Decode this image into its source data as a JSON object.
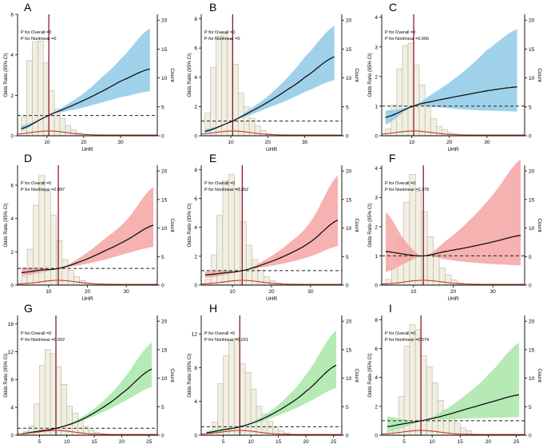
{
  "chart_data": [
    {
      "letter": "A",
      "type": "line",
      "p_overall": "P for Overall =0",
      "p_nonlinear": "P for Nonlinear =0",
      "xlabel": "UHR",
      "ylabel": "Odds Ratio (95% CI)",
      "y2label": "Count",
      "xlim": [
        2,
        40
      ],
      "xticks": [
        10,
        20,
        30
      ],
      "ylim": [
        0,
        6
      ],
      "yticks": [
        0,
        2,
        4,
        6
      ],
      "y2lim": [
        0,
        21
      ],
      "y2ticks": [
        0,
        5,
        10,
        15,
        20
      ],
      "ref_x": 10.5,
      "ref_y": 1,
      "hist_start": 3,
      "hist_width": 1.5,
      "counts": [
        3.3,
        13,
        16.2,
        16.4,
        12.6,
        7.8,
        4.6,
        3.0,
        1.8,
        1.0,
        0.5,
        0.3,
        0.2,
        0.1
      ],
      "curve": {
        "x": [
          3,
          10.5,
          15,
          20,
          25,
          30,
          38
        ],
        "y": [
          0.35,
          1,
          1.35,
          1.75,
          2.2,
          2.7,
          3.3
        ]
      },
      "band": {
        "lower": [
          0.25,
          1,
          1.2,
          1.4,
          1.65,
          1.9,
          2.2
        ],
        "upper": [
          0.5,
          1,
          1.5,
          2.1,
          2.9,
          3.8,
          5.3
        ]
      },
      "band_color": "#8ecae6"
    },
    {
      "letter": "B",
      "type": "line",
      "p_overall": "P for Overall =0",
      "p_nonlinear": "P for Nonlinear =0",
      "xlabel": "UHR",
      "ylabel": "Odds Ratio (95% CI)",
      "y2label": "Count",
      "xlim": [
        2,
        40
      ],
      "xticks": [
        10,
        20,
        30
      ],
      "ylim": [
        0,
        8.3
      ],
      "yticks": [
        0,
        2,
        4,
        6,
        8
      ],
      "y2lim": [
        0,
        21
      ],
      "y2ticks": [
        0,
        5,
        10,
        15,
        20
      ],
      "ref_x": 10.5,
      "ref_y": 1,
      "hist_start": 3,
      "hist_width": 1.5,
      "counts": [
        3.9,
        11.8,
        17.2,
        17.8,
        16.8,
        12.4,
        7.4,
        5.0,
        3.0,
        1.7,
        0.9,
        0.4,
        0.2,
        0.1
      ],
      "curve": {
        "x": [
          3,
          10.5,
          15,
          20,
          25,
          30,
          38
        ],
        "y": [
          0.3,
          1,
          1.6,
          2.3,
          3.1,
          4.0,
          5.4
        ]
      },
      "band": {
        "lower": [
          0.2,
          1,
          1.4,
          1.9,
          2.4,
          3.0,
          3.8
        ],
        "upper": [
          0.45,
          1,
          1.8,
          2.7,
          3.9,
          5.4,
          7.5
        ]
      },
      "band_color": "#8ecae6"
    },
    {
      "letter": "C",
      "type": "line",
      "p_overall": "P for Overall =0",
      "p_nonlinear": "P for Nonlinear =0.006",
      "xlabel": "UHR",
      "ylabel": "Odds Ratio (95% CI)",
      "y2label": "Count",
      "xlim": [
        2,
        40
      ],
      "xticks": [
        10,
        20,
        30
      ],
      "ylim": [
        0,
        4.1
      ],
      "yticks": [
        0,
        1,
        2,
        3,
        4
      ],
      "y2lim": [
        0,
        21
      ],
      "y2ticks": [
        0,
        5,
        10,
        15,
        20
      ],
      "ref_x": 10.5,
      "ref_y": 1,
      "hist_start": 3,
      "hist_width": 1.5,
      "counts": [
        1.2,
        5.3,
        11.6,
        15.6,
        16.0,
        12.2,
        8.8,
        5.3,
        3.0,
        1.6,
        1.0,
        0.5,
        0.3,
        0.15
      ],
      "curve": {
        "x": [
          3,
          10.5,
          15,
          20,
          25,
          30,
          38
        ],
        "y": [
          0.62,
          1,
          1.15,
          1.28,
          1.4,
          1.52,
          1.65
        ]
      },
      "band": {
        "lower": [
          0.38,
          1,
          0.98,
          0.93,
          0.88,
          0.85,
          0.82
        ],
        "upper": [
          0.85,
          1,
          1.38,
          1.8,
          2.3,
          2.9,
          3.6
        ]
      },
      "band_color": "#8ecae6"
    },
    {
      "letter": "D",
      "type": "line",
      "p_overall": "P for Overall =0",
      "p_nonlinear": "P for Nonlinear =0.097",
      "xlabel": "UHR",
      "ylabel": "Odds Ratio (95% CI)",
      "y2label": "Count",
      "xlim": [
        2,
        38
      ],
      "xticks": [
        10,
        20,
        30
      ],
      "ylim": [
        0,
        7.2
      ],
      "yticks": [
        0,
        2,
        4,
        6
      ],
      "y2lim": [
        0,
        21
      ],
      "y2ticks": [
        0,
        5,
        10,
        15,
        20
      ],
      "ref_x": 12.5,
      "ref_y": 1,
      "hist_start": 3,
      "hist_width": 1.5,
      "counts": [
        1.5,
        6.3,
        14.0,
        19.2,
        16.5,
        12.3,
        7.8,
        4.5,
        2.6,
        1.5,
        0.8,
        0.4,
        0.2,
        0.1
      ],
      "curve": {
        "x": [
          3,
          8,
          12.5,
          18,
          24,
          30,
          37
        ],
        "y": [
          0.75,
          0.9,
          1,
          1.4,
          2.0,
          2.7,
          3.6
        ]
      },
      "band": {
        "lower": [
          0.55,
          0.75,
          1,
          1.2,
          1.5,
          1.9,
          2.3
        ],
        "upper": [
          1.05,
          1.05,
          1,
          1.65,
          2.7,
          3.9,
          5.9
        ]
      },
      "band_color": "#f4a3a3"
    },
    {
      "letter": "E",
      "type": "line",
      "p_overall": "P for Overall =0",
      "p_nonlinear": "P for Nonlinear =0.352",
      "xlabel": "UHR",
      "ylabel": "Odds Ratio (95% CI)",
      "y2label": "Count",
      "xlim": [
        2,
        38
      ],
      "xticks": [
        10,
        20,
        30
      ],
      "ylim": [
        0,
        8.3
      ],
      "yticks": [
        0,
        2,
        4,
        6,
        8
      ],
      "y2lim": [
        0,
        21
      ],
      "y2ticks": [
        0,
        5,
        10,
        15,
        20
      ],
      "ref_x": 12.5,
      "ref_y": 1,
      "hist_start": 3,
      "hist_width": 1.5,
      "counts": [
        1.0,
        5.3,
        12.2,
        18.3,
        19.4,
        17.0,
        11.1,
        7.0,
        4.5,
        2.6,
        1.5,
        0.8,
        0.4,
        0.2
      ],
      "curve": {
        "x": [
          3,
          8,
          12.5,
          18,
          24,
          30,
          37
        ],
        "y": [
          0.7,
          0.85,
          1,
          1.45,
          2.1,
          3.0,
          4.5
        ]
      },
      "band": {
        "lower": [
          0.5,
          0.7,
          1,
          1.25,
          1.55,
          2.0,
          2.7
        ],
        "upper": [
          0.95,
          1.0,
          1,
          1.7,
          2.8,
          4.4,
          7.6
        ]
      },
      "band_color": "#f4a3a3"
    },
    {
      "letter": "F",
      "type": "line",
      "p_overall": "P for Overall =0",
      "p_nonlinear": "P for Nonlinear =0.379",
      "xlabel": "UHR",
      "ylabel": "Odds Ratio (95% CI)",
      "y2label": "Count",
      "xlim": [
        2,
        38
      ],
      "xticks": [
        10,
        20,
        30
      ],
      "ylim": [
        0,
        4.1
      ],
      "yticks": [
        0,
        1,
        2,
        3,
        4
      ],
      "y2lim": [
        0,
        21
      ],
      "y2ticks": [
        0,
        5,
        10,
        15,
        20
      ],
      "ref_x": 12.5,
      "ref_y": 1,
      "hist_start": 3,
      "hist_width": 1.5,
      "counts": [
        1.0,
        2.8,
        8.1,
        14.5,
        19.4,
        16.5,
        12.9,
        8.5,
        5.2,
        3.0,
        1.8,
        0.9,
        0.4,
        0.2
      ],
      "curve": {
        "x": [
          3,
          8,
          12.5,
          18,
          24,
          30,
          37
        ],
        "y": [
          1.15,
          1.05,
          1,
          1.15,
          1.3,
          1.48,
          1.7
        ]
      },
      "band": {
        "lower": [
          0.45,
          0.75,
          1,
          0.88,
          0.78,
          0.72,
          0.68
        ],
        "upper": [
          2.5,
          1.5,
          1,
          1.5,
          2.2,
          3.1,
          4.3
        ]
      },
      "band_color": "#f4a3a3"
    },
    {
      "letter": "G",
      "type": "line",
      "p_overall": "P for Overall =0",
      "p_nonlinear": "P for Nonlinear =0.002",
      "xlabel": "UHR",
      "ylabel": "Odds Ratio (95% CI)",
      "y2label": "Count",
      "xlim": [
        1,
        26.5
      ],
      "xticks": [
        5,
        10,
        15,
        20,
        25
      ],
      "ylim": [
        0,
        17.2
      ],
      "yticks": [
        0,
        4,
        8,
        12,
        16
      ],
      "y2lim": [
        0,
        21
      ],
      "y2ticks": [
        0,
        5,
        10,
        15,
        20
      ],
      "ref_x": 8,
      "ref_y": 1,
      "hist_start": 2,
      "hist_width": 1,
      "counts": [
        0.6,
        1.6,
        5.5,
        12.2,
        15.0,
        14.3,
        12.0,
        8.9,
        5.1,
        3.9,
        2.5,
        1.5,
        0.9,
        0.5,
        0.3
      ],
      "curve": {
        "x": [
          2,
          5,
          8,
          12,
          16,
          20,
          25.5
        ],
        "y": [
          0.25,
          0.6,
          1,
          2.0,
          3.7,
          6.0,
          9.5
        ]
      },
      "band": {
        "lower": [
          0.15,
          0.5,
          1,
          1.8,
          3.1,
          4.7,
          6.9
        ],
        "upper": [
          0.4,
          0.75,
          1,
          2.3,
          4.5,
          7.8,
          13.3
        ]
      },
      "band_color": "#a8e6a8"
    },
    {
      "letter": "H",
      "type": "line",
      "p_overall": "P for Overall =0",
      "p_nonlinear": "P for Nonlinear =0.021",
      "xlabel": "UHR",
      "ylabel": "Odds Ratio (95% CI)",
      "y2label": "Count",
      "xlim": [
        1,
        26.5
      ],
      "xticks": [
        5,
        10,
        15,
        20,
        25
      ],
      "ylim": [
        0,
        14.2
      ],
      "yticks": [
        0,
        4,
        8,
        12
      ],
      "y2lim": [
        0,
        21
      ],
      "y2ticks": [
        0,
        5,
        10,
        15,
        20
      ],
      "ref_x": 8,
      "ref_y": 1,
      "hist_start": 2,
      "hist_width": 1,
      "counts": [
        0.6,
        2.3,
        9.0,
        13.9,
        16.6,
        17.0,
        12.5,
        11.0,
        8.1,
        5.1,
        3.7,
        2.4,
        1.3,
        0.8,
        0.4
      ],
      "curve": {
        "x": [
          2,
          5,
          8,
          12,
          16,
          20,
          25.5
        ],
        "y": [
          0.3,
          0.65,
          1,
          1.9,
          3.3,
          5.2,
          8.3
        ]
      },
      "band": {
        "lower": [
          0.15,
          0.5,
          1,
          1.65,
          2.6,
          3.8,
          5.6
        ],
        "upper": [
          0.5,
          0.85,
          1,
          2.2,
          4.2,
          7.2,
          12.4
        ]
      },
      "band_color": "#a8e6a8"
    },
    {
      "letter": "I",
      "type": "line",
      "p_overall": "P for Overall =0",
      "p_nonlinear": "P for Nonlinear =0.574",
      "xlabel": "UHR",
      "ylabel": "Odds Ratio (95% CI)",
      "y2label": "Count",
      "xlim": [
        1,
        26.5
      ],
      "xticks": [
        5,
        10,
        15,
        20,
        25
      ],
      "ylim": [
        0,
        8.3
      ],
      "yticks": [
        0,
        2,
        4,
        6,
        8
      ],
      "y2lim": [
        0,
        21
      ],
      "y2ticks": [
        0,
        5,
        10,
        15,
        20
      ],
      "ref_x": 8,
      "ref_y": 1,
      "hist_start": 2,
      "hist_width": 1,
      "counts": [
        0.8,
        2.5,
        6.8,
        15.6,
        19.4,
        18.5,
        13.9,
        12.0,
        9.2,
        6.1,
        4.4,
        3.4,
        2.1,
        1.3,
        0.8
      ],
      "curve": {
        "x": [
          2,
          5,
          8,
          12,
          16,
          20,
          25.5
        ],
        "y": [
          0.6,
          0.8,
          1,
          1.35,
          1.8,
          2.25,
          2.8
        ]
      },
      "band": {
        "lower": [
          0.25,
          0.55,
          1,
          1.1,
          1.15,
          1.2,
          1.25
        ],
        "upper": [
          1.3,
          1.1,
          1,
          1.7,
          2.8,
          4.2,
          6.4
        ]
      },
      "band_color": "#a8e6a8"
    }
  ]
}
